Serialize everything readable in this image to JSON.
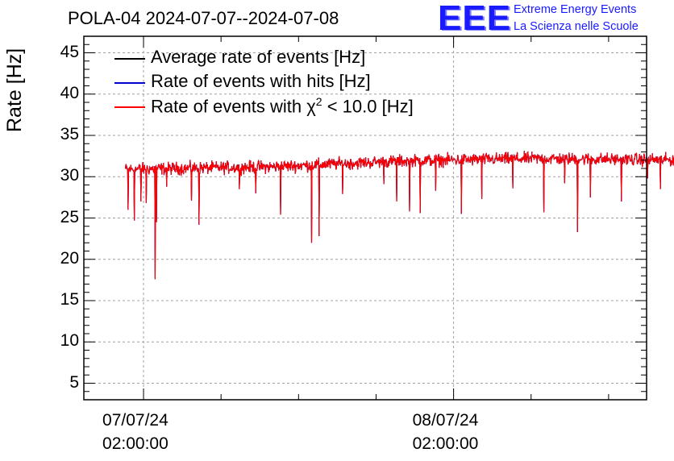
{
  "header": {
    "title": "POLA-04 2024-07-07--2024-07-08",
    "logo_text": "EEE",
    "logo_line1": "Extreme Energy Events",
    "logo_line2": "La Scienza nelle Scuole",
    "logo_color": "#1a1aff"
  },
  "chart_data": {
    "type": "line",
    "title": "POLA-04 2024-07-07--2024-07-08",
    "ylabel": "Rate [Hz]",
    "xlabel": "",
    "ylim": [
      3,
      47
    ],
    "yticks": [
      5,
      10,
      15,
      20,
      25,
      30,
      35,
      40,
      45
    ],
    "ytick_labels": [
      "5",
      "10",
      "15",
      "20",
      "25",
      "30",
      "35",
      "40",
      "45"
    ],
    "xlim_hours": [
      -2.31,
      19.47
    ],
    "xticks_hours": [
      0,
      12
    ],
    "xtick_labels": [
      {
        "date": "07/07/24",
        "time": "02:00:00"
      },
      {
        "date": "08/07/24",
        "time": "02:00:00"
      }
    ],
    "minor_xtick_hours": [
      3,
      6,
      9,
      15,
      18
    ],
    "grid": true,
    "legend_position": "top-left",
    "series": [
      {
        "name": "Average rate of events [Hz]",
        "color": "#000000",
        "visible_on_top": false
      },
      {
        "name": "Rate of events with hits [Hz]",
        "color": "#0000cc",
        "visible_on_top": false
      },
      {
        "name": "Rate of events with χ² < 10.0 [Hz]",
        "legend_prefix": "Rate of events with ",
        "legend_chi": "χ",
        "legend_sup": "2",
        "legend_suffix": " < 10.0 [Hz]",
        "color": "#ff0000",
        "visible_on_top": true
      }
    ],
    "time_range_hours": [
      -0.7,
      21.6
    ],
    "baseline_trend": [
      {
        "t": -0.7,
        "v": 30.9
      },
      {
        "t": 5.0,
        "v": 31.2
      },
      {
        "t": 10.0,
        "v": 31.9
      },
      {
        "t": 15.0,
        "v": 32.2
      },
      {
        "t": 21.6,
        "v": 32.0
      }
    ],
    "noise_amplitude_hz": 0.8,
    "dips": [
      {
        "t": -0.6,
        "v": 26.0
      },
      {
        "t": -0.35,
        "v": 24.7
      },
      {
        "t": -0.1,
        "v": 27.0
      },
      {
        "t": 0.1,
        "v": 26.8
      },
      {
        "t": 0.45,
        "v": 17.6
      },
      {
        "t": 0.5,
        "v": 24.5
      },
      {
        "t": 0.9,
        "v": 28.8
      },
      {
        "t": 1.85,
        "v": 27.1
      },
      {
        "t": 2.15,
        "v": 24.2
      },
      {
        "t": 3.7,
        "v": 28.5
      },
      {
        "t": 4.35,
        "v": 28.0
      },
      {
        "t": 5.3,
        "v": 25.4
      },
      {
        "t": 6.5,
        "v": 22.0
      },
      {
        "t": 6.8,
        "v": 22.8
      },
      {
        "t": 7.7,
        "v": 27.9
      },
      {
        "t": 9.3,
        "v": 29.1
      },
      {
        "t": 9.8,
        "v": 27.0
      },
      {
        "t": 10.3,
        "v": 25.8
      },
      {
        "t": 10.7,
        "v": 25.6
      },
      {
        "t": 11.3,
        "v": 28.3
      },
      {
        "t": 12.3,
        "v": 25.5
      },
      {
        "t": 13.1,
        "v": 27.3
      },
      {
        "t": 14.3,
        "v": 28.6
      },
      {
        "t": 15.5,
        "v": 25.7
      },
      {
        "t": 16.3,
        "v": 29.2
      },
      {
        "t": 16.8,
        "v": 23.3
      },
      {
        "t": 17.3,
        "v": 27.5
      },
      {
        "t": 18.5,
        "v": 27.0
      },
      {
        "t": 19.5,
        "v": 29.8
      },
      {
        "t": 20.0,
        "v": 28.5
      },
      {
        "t": 21.6,
        "v": 25.5
      }
    ]
  }
}
